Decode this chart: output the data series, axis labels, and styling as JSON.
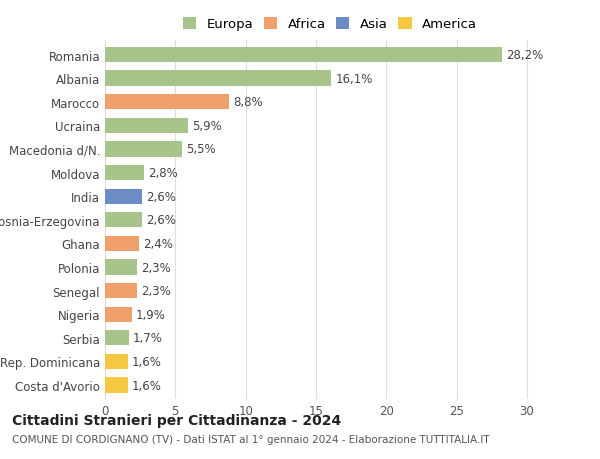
{
  "categories": [
    "Costa d'Avorio",
    "Rep. Dominicana",
    "Serbia",
    "Nigeria",
    "Senegal",
    "Polonia",
    "Ghana",
    "Bosnia-Erzegovina",
    "India",
    "Moldova",
    "Macedonia d/N.",
    "Ucraina",
    "Marocco",
    "Albania",
    "Romania"
  ],
  "values": [
    1.6,
    1.6,
    1.7,
    1.9,
    2.3,
    2.3,
    2.4,
    2.6,
    2.6,
    2.8,
    5.5,
    5.9,
    8.8,
    16.1,
    28.2
  ],
  "bar_colors": [
    "#f5c842",
    "#f5c842",
    "#a8c48a",
    "#f0a06a",
    "#f0a06a",
    "#a8c48a",
    "#f0a06a",
    "#a8c48a",
    "#6b8dc4",
    "#a8c48a",
    "#a8c48a",
    "#a8c48a",
    "#f0a06a",
    "#a8c48a",
    "#a8c48a"
  ],
  "label_values": [
    "1,6%",
    "1,6%",
    "1,7%",
    "1,9%",
    "2,3%",
    "2,3%",
    "2,4%",
    "2,6%",
    "2,6%",
    "2,8%",
    "5,5%",
    "5,9%",
    "8,8%",
    "16,1%",
    "28,2%"
  ],
  "legend_labels": [
    "Europa",
    "Africa",
    "Asia",
    "America"
  ],
  "legend_colors": [
    "#a8c48a",
    "#f0a06a",
    "#6b8dc4",
    "#f5c842"
  ],
  "title": "Cittadini Stranieri per Cittadinanza - 2024",
  "subtitle": "COMUNE DI CORDIGNANO (TV) - Dati ISTAT al 1° gennaio 2024 - Elaborazione TUTTITALIA.IT",
  "xlim": [
    0,
    32
  ],
  "xticks": [
    0,
    5,
    10,
    15,
    20,
    25,
    30
  ],
  "background_color": "#ffffff",
  "grid_color": "#dddddd",
  "bar_height": 0.65,
  "title_fontsize": 10,
  "subtitle_fontsize": 7.5,
  "tick_fontsize": 8.5,
  "label_fontsize": 8.5,
  "legend_fontsize": 9.5
}
